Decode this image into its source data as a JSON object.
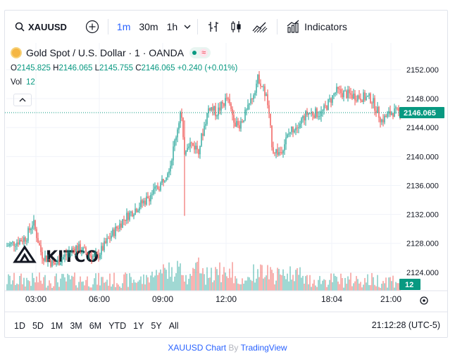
{
  "toolbar": {
    "symbol": "XAUUSD",
    "intervals": [
      "1m",
      "30m",
      "1h"
    ],
    "indicators_label": "Indicators",
    "icons": [
      "search-icon",
      "add-icon",
      "chevron-down-icon",
      "bar-chart-icon",
      "candles-icon",
      "area-chart-icon",
      "indicators-icon"
    ]
  },
  "legend": {
    "title": "Gold Spot / U.S. Dollar · 1 · OANDA",
    "approx": "≈",
    "open_key": "O",
    "open": "2145.825",
    "high_key": "H",
    "high": "2146.065",
    "low_key": "L",
    "low": "2145.755",
    "close_key": "C",
    "close": "2146.065",
    "change": "+0.240 (+0.01%)",
    "vol_label": "Vol",
    "vol_value": "12",
    "collapse": "^"
  },
  "chart": {
    "price_ticks": [
      "2152.000",
      "2148.000",
      "2144.000",
      "2140.000",
      "2136.000",
      "2132.000",
      "2128.000",
      "2124.000"
    ],
    "time_ticks": [
      "03:00",
      "06:00",
      "09:00",
      "12:00",
      "18:04",
      "21:00"
    ],
    "last_price": "2146.065",
    "last_volume": "12",
    "watermark": "KITCO",
    "up_color": "#26a69a",
    "down_color": "#ef5350"
  },
  "bottom": {
    "ranges": [
      "1D",
      "5D",
      "1M",
      "3M",
      "6M",
      "YTD",
      "1Y",
      "5Y",
      "All"
    ],
    "time": "21:12:28 (UTC-5)"
  },
  "footer": {
    "symbol_link": "XAUUSD Chart",
    "by": "By",
    "brand": "TradingView"
  }
}
